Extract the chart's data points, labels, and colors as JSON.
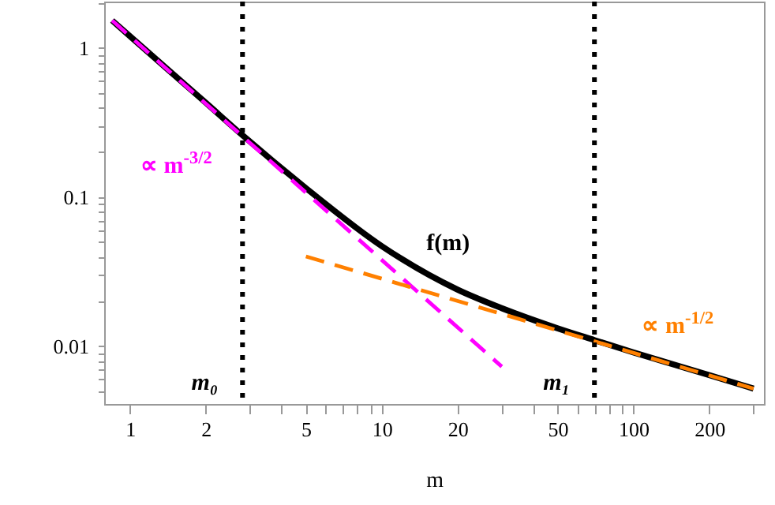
{
  "chart_data": {
    "type": "line",
    "xlabel": "m",
    "log": "xy",
    "xlim": [
      0.79,
      330
    ],
    "ylim": [
      0.0041,
      2.05
    ],
    "xticks": [
      {
        "value": 1,
        "label": "1"
      },
      {
        "value": 2,
        "label": "2"
      },
      {
        "value": 3,
        "label": null
      },
      {
        "value": 4,
        "label": null
      },
      {
        "value": 5,
        "label": "5"
      },
      {
        "value": 6,
        "label": null
      },
      {
        "value": 7,
        "label": null
      },
      {
        "value": 8,
        "label": null
      },
      {
        "value": 9,
        "label": null
      },
      {
        "value": 10,
        "label": "10"
      },
      {
        "value": 20,
        "label": "20"
      },
      {
        "value": 30,
        "label": null
      },
      {
        "value": 40,
        "label": null
      },
      {
        "value": 50,
        "label": "50"
      },
      {
        "value": 60,
        "label": null
      },
      {
        "value": 70,
        "label": null
      },
      {
        "value": 80,
        "label": null
      },
      {
        "value": 90,
        "label": null
      },
      {
        "value": 100,
        "label": "100"
      },
      {
        "value": 200,
        "label": "200"
      },
      {
        "value": 300,
        "label": null
      }
    ],
    "yticks": [
      {
        "value": 0.005,
        "label": null
      },
      {
        "value": 0.006,
        "label": null
      },
      {
        "value": 0.007,
        "label": null
      },
      {
        "value": 0.008,
        "label": null
      },
      {
        "value": 0.009,
        "label": null
      },
      {
        "value": 0.01,
        "label": "0.01"
      },
      {
        "value": 0.02,
        "label": null
      },
      {
        "value": 0.03,
        "label": null
      },
      {
        "value": 0.04,
        "label": null
      },
      {
        "value": 0.05,
        "label": null
      },
      {
        "value": 0.06,
        "label": null
      },
      {
        "value": 0.07,
        "label": null
      },
      {
        "value": 0.08,
        "label": null
      },
      {
        "value": 0.09,
        "label": null
      },
      {
        "value": 0.1,
        "label": "0.1"
      },
      {
        "value": 0.2,
        "label": null
      },
      {
        "value": 0.3,
        "label": null
      },
      {
        "value": 0.4,
        "label": null
      },
      {
        "value": 0.5,
        "label": null
      },
      {
        "value": 0.6,
        "label": null
      },
      {
        "value": 0.7,
        "label": null
      },
      {
        "value": 0.8,
        "label": null
      },
      {
        "value": 0.9,
        "label": null
      },
      {
        "value": 1,
        "label": "1"
      },
      {
        "value": 2,
        "label": null
      }
    ],
    "series": [
      {
        "name": "f(m)",
        "color": "#000000",
        "line_style": "solid",
        "x": [
          0.85,
          1,
          2,
          2.8,
          5,
          10,
          20,
          30,
          50,
          70,
          100,
          200,
          300
        ],
        "values": [
          1.53,
          1.2,
          0.43,
          0.26,
          0.115,
          0.047,
          0.024,
          0.018,
          0.0132,
          0.011,
          0.0091,
          0.0064,
          0.0052
        ]
      },
      {
        "name": "∝ m$^{-3/2}$",
        "color": "#ff00ff",
        "line_style": "dashed",
        "x": [
          0.85,
          2.8,
          30
        ],
        "values": [
          1.53,
          0.256,
          0.0073
        ]
      },
      {
        "name": "∝ m$^{-1/2}$",
        "color": "#ff8000",
        "line_style": "dashed",
        "x": [
          5,
          70,
          300
        ],
        "values": [
          0.04,
          0.0108,
          0.0052
        ]
      }
    ],
    "ref_lines": [
      {
        "axis": "x",
        "value": 2.8,
        "label": "m₀",
        "color": "#000000",
        "line_style": "dotted"
      },
      {
        "axis": "x",
        "value": 70,
        "label": "m₁",
        "color": "#000000",
        "line_style": "dotted"
      }
    ]
  }
}
